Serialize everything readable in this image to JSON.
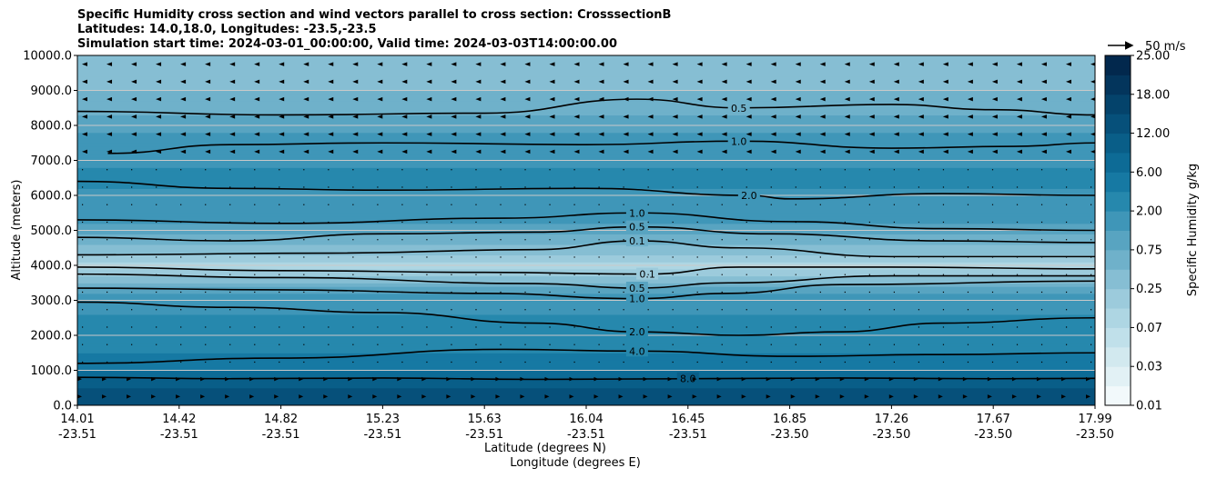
{
  "chart_data": {
    "type": "heatmap",
    "title_lines": [
      "Specific Humidity cross section and wind vectors parallel to cross section: CrosssectionB",
      "Latitudes: 14.0,18.0, Longitudes: -23.5,-23.5",
      "Simulation start time: 2024-03-01_00:00:00, Valid time: 2024-03-03T14:00:00.00"
    ],
    "ylabel": "Altitude (meters)",
    "xlabel_lat": "Latitude (degrees N)",
    "xlabel_lon": "Longitude (degrees E)",
    "ylim": [
      0,
      10000
    ],
    "y_ticks": [
      "0.0",
      "1000.0",
      "2000.0",
      "3000.0",
      "4000.0",
      "5000.0",
      "6000.0",
      "7000.0",
      "8000.0",
      "9000.0",
      "10000.0"
    ],
    "x_ticks": [
      {
        "lat": "14.01",
        "lon": "-23.51"
      },
      {
        "lat": "14.42",
        "lon": "-23.51"
      },
      {
        "lat": "14.82",
        "lon": "-23.51"
      },
      {
        "lat": "15.23",
        "lon": "-23.51"
      },
      {
        "lat": "15.63",
        "lon": "-23.51"
      },
      {
        "lat": "16.04",
        "lon": "-23.51"
      },
      {
        "lat": "16.45",
        "lon": "-23.51"
      },
      {
        "lat": "16.85",
        "lon": "-23.50"
      },
      {
        "lat": "17.26",
        "lon": "-23.50"
      },
      {
        "lat": "17.67",
        "lon": "-23.50"
      },
      {
        "lat": "17.99",
        "lon": "-23.50"
      }
    ],
    "grid": "horizontal",
    "colorbar": {
      "label": "Specific Humidity g/kg",
      "tick_labels": [
        "0.01",
        "0.03",
        "0.07",
        "0.25",
        "0.75",
        "2.00",
        "6.00",
        "12.00",
        "18.00",
        "25.00"
      ],
      "levels": [
        0.01,
        0.02,
        0.03,
        0.05,
        0.07,
        0.1,
        0.25,
        0.5,
        0.75,
        1,
        2,
        4,
        6,
        8,
        12,
        15,
        18,
        21,
        25
      ]
    },
    "quiver_key": "50 m/s",
    "profile": [
      {
        "alt": 0,
        "q": 15
      },
      {
        "alt": 500,
        "q": 12
      },
      {
        "alt": 800,
        "q": 8
      },
      {
        "alt": 1200,
        "q": 5
      },
      {
        "alt": 2000,
        "q": 3
      },
      {
        "alt": 2800,
        "q": 1.8
      },
      {
        "alt": 3300,
        "q": 0.9
      },
      {
        "alt": 3700,
        "q": 0.3
      },
      {
        "alt": 4000,
        "q": 0.08
      },
      {
        "alt": 4300,
        "q": 0.3
      },
      {
        "alt": 5000,
        "q": 0.9
      },
      {
        "alt": 6000,
        "q": 1.8
      },
      {
        "alt": 6500,
        "q": 2.5
      },
      {
        "alt": 7000,
        "q": 1.8
      },
      {
        "alt": 8000,
        "q": 0.9
      },
      {
        "alt": 9000,
        "q": 0.5
      },
      {
        "alt": 10000,
        "q": 0.3
      }
    ],
    "contours": [
      {
        "level": "8.0",
        "points": [
          [
            0,
            800
          ],
          [
            1.5,
            760
          ],
          [
            3,
            780
          ],
          [
            4.5,
            740
          ],
          [
            6,
            760
          ],
          [
            7.5,
            780
          ],
          [
            9,
            760
          ],
          [
            10,
            770
          ]
        ]
      },
      {
        "level": "4.0",
        "points": [
          [
            0,
            1200
          ],
          [
            2,
            1350
          ],
          [
            4.2,
            1600
          ],
          [
            5.5,
            1550
          ],
          [
            7,
            1400
          ],
          [
            8.5,
            1450
          ],
          [
            10,
            1500
          ]
        ]
      },
      {
        "level": "2.0",
        "points": [
          [
            0,
            2950
          ],
          [
            1.5,
            2800
          ],
          [
            3,
            2650
          ],
          [
            4.5,
            2350
          ],
          [
            5.5,
            2100
          ],
          [
            6.5,
            2000
          ],
          [
            7.5,
            2100
          ],
          [
            8.5,
            2350
          ],
          [
            10,
            2500
          ]
        ]
      },
      {
        "level": "1.0",
        "points": [
          [
            0,
            3350
          ],
          [
            2,
            3300
          ],
          [
            4,
            3200
          ],
          [
            5.5,
            3050
          ],
          [
            6.4,
            3200
          ],
          [
            7.5,
            3450
          ],
          [
            10,
            3550
          ]
        ]
      },
      {
        "level": "0.5",
        "points": [
          [
            0,
            3750
          ],
          [
            2,
            3650
          ],
          [
            4.5,
            3480
          ],
          [
            5.5,
            3350
          ],
          [
            6.4,
            3500
          ],
          [
            8,
            3700
          ],
          [
            10,
            3700
          ]
        ]
      },
      {
        "level": "0.1",
        "points": [
          [
            0,
            3950
          ],
          [
            2,
            3850
          ],
          [
            4,
            3800
          ],
          [
            5.6,
            3750
          ],
          [
            6.5,
            3950
          ],
          [
            8,
            3950
          ],
          [
            10,
            3900
          ]
        ]
      },
      {
        "level": "0.1",
        "points": [
          [
            0,
            4300
          ],
          [
            2.5,
            4350
          ],
          [
            4.5,
            4450
          ],
          [
            5.5,
            4700
          ],
          [
            6.5,
            4500
          ],
          [
            8,
            4250
          ],
          [
            10,
            4250
          ]
        ]
      },
      {
        "level": "0.5",
        "points": [
          [
            0,
            4800
          ],
          [
            1.5,
            4700
          ],
          [
            3,
            4900
          ],
          [
            4.5,
            4950
          ],
          [
            5.5,
            5100
          ],
          [
            6.8,
            4900
          ],
          [
            8.5,
            4700
          ],
          [
            10,
            4650
          ]
        ]
      },
      {
        "level": "1.0",
        "points": [
          [
            0,
            5300
          ],
          [
            2,
            5200
          ],
          [
            4.2,
            5350
          ],
          [
            5.5,
            5500
          ],
          [
            7,
            5250
          ],
          [
            8.5,
            5050
          ],
          [
            10,
            5000
          ]
        ]
      },
      {
        "level": "2.0",
        "points": [
          [
            0,
            6400
          ],
          [
            1.5,
            6200
          ],
          [
            3,
            6150
          ],
          [
            5,
            6200
          ],
          [
            6.6,
            6000
          ],
          [
            7,
            5900
          ],
          [
            8.5,
            6050
          ],
          [
            10,
            6000
          ]
        ]
      },
      {
        "level": "1.0",
        "points": [
          [
            0.3,
            7200
          ],
          [
            1.5,
            7450
          ],
          [
            3,
            7500
          ],
          [
            5,
            7450
          ],
          [
            6.5,
            7550
          ],
          [
            8,
            7350
          ],
          [
            9.2,
            7400
          ],
          [
            10,
            7500
          ]
        ]
      },
      {
        "level": "0.5",
        "points": [
          [
            0,
            8400
          ],
          [
            2,
            8300
          ],
          [
            4,
            8350
          ],
          [
            5.5,
            8750
          ],
          [
            6.5,
            8500
          ],
          [
            8,
            8600
          ],
          [
            9,
            8450
          ],
          [
            10,
            8300
          ]
        ]
      }
    ]
  }
}
